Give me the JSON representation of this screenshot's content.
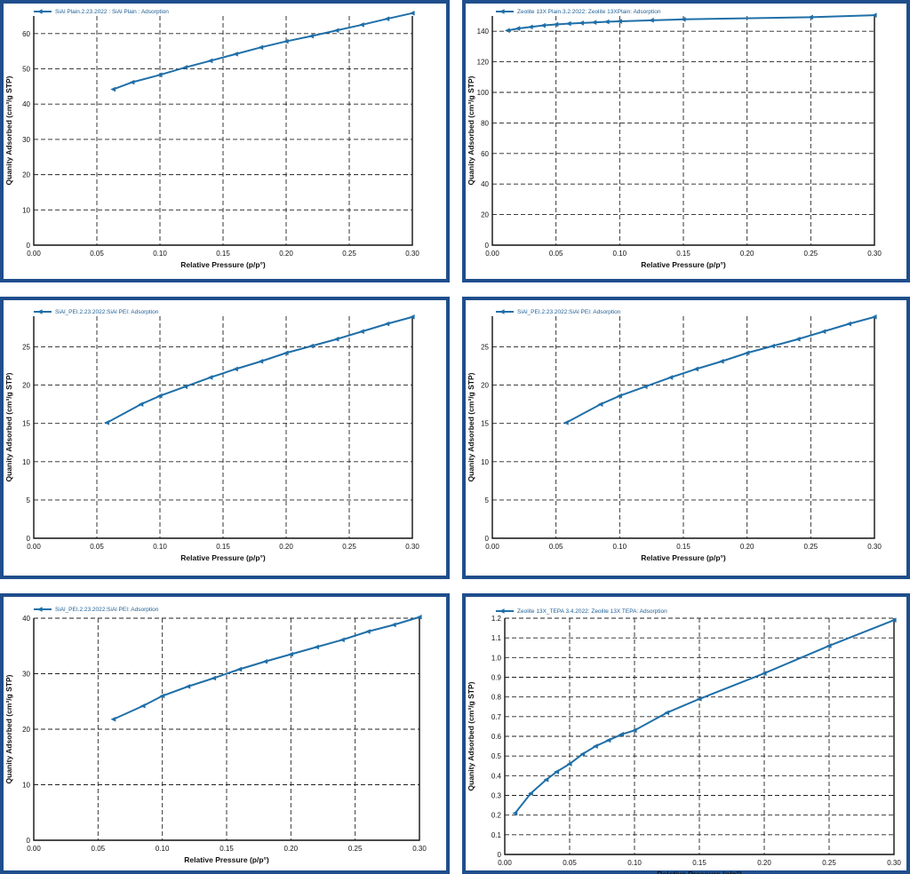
{
  "chart_data": [
    {
      "type": "line",
      "legend": "SiAl Plain.2.23.2022 : SiAl Plain : Adsorption",
      "xlabel": "Relative Pressure (p/p°)",
      "ylabel": "Quanity Adsorbed (cm³/g STP)",
      "xlim": [
        0,
        0.3
      ],
      "ylim": [
        0,
        65
      ],
      "xticks": [
        "0.00",
        "0.05",
        "0.10",
        "0.15",
        "0.20",
        "0.25",
        "0.30"
      ],
      "yticks": [
        "0",
        "10",
        "20",
        "30",
        "40",
        "50",
        "60"
      ],
      "series": [
        {
          "color": "#1f6fa8",
          "x": [
            0.063,
            0.078,
            0.1,
            0.12,
            0.14,
            0.16,
            0.18,
            0.2,
            0.22,
            0.24,
            0.26,
            0.28,
            0.3
          ],
          "y": [
            44.2,
            46.2,
            48.3,
            50.4,
            52.3,
            54.2,
            56.1,
            57.8,
            59.3,
            60.9,
            62.5,
            64.2,
            65.8
          ]
        }
      ]
    },
    {
      "type": "line",
      "legend": "Zeolite 13X Plain.3.2.2022: Zeolite 13XPlain: Adsorption",
      "xlabel": "Relative Pressure (p/p°)",
      "ylabel": "Quanity Adsorbed (cm³/g STP)",
      "xlim": [
        0,
        0.3
      ],
      "ylim": [
        0,
        150
      ],
      "xticks": [
        "0.00",
        "0.05",
        "0.10",
        "0.15",
        "0.20",
        "0.25",
        "0.30"
      ],
      "yticks": [
        "0",
        "20",
        "40",
        "60",
        "80",
        "100",
        "120",
        "140"
      ],
      "series": [
        {
          "color": "#1f6fa8",
          "x": [
            0.012,
            0.02,
            0.03,
            0.04,
            0.05,
            0.06,
            0.07,
            0.08,
            0.09,
            0.1,
            0.125,
            0.15,
            0.25,
            0.3
          ],
          "y": [
            140.5,
            141.8,
            142.8,
            143.8,
            144.5,
            145.0,
            145.4,
            145.8,
            146.2,
            146.5,
            147.2,
            147.8,
            149.2,
            150.5
          ]
        }
      ]
    },
    {
      "type": "line",
      "legend": "SiAl_PEI.2.23.2022:SiAl PEI: Adsorption",
      "xlabel": "Relative Pressure (p/p°)",
      "ylabel": "Quanity Adsorbed (cm³/g STP)",
      "xlim": [
        0,
        0.3
      ],
      "ylim": [
        0,
        29
      ],
      "xticks": [
        "0.00",
        "0.05",
        "0.10",
        "0.15",
        "0.20",
        "0.25",
        "0.30"
      ],
      "yticks": [
        "0",
        "5",
        "10",
        "15",
        "20",
        "25"
      ],
      "series": [
        {
          "color": "#1f6fa8",
          "x": [
            0.058,
            0.085,
            0.1,
            0.12,
            0.14,
            0.16,
            0.18,
            0.2,
            0.22,
            0.24,
            0.26,
            0.28,
            0.3
          ],
          "y": [
            15.1,
            17.5,
            18.6,
            19.8,
            21.0,
            22.1,
            23.1,
            24.2,
            25.1,
            26.0,
            27.0,
            28.0,
            28.9
          ]
        }
      ]
    },
    {
      "type": "line",
      "legend": "SiAl_PEI.2.23.2022:SiAl PEI: Adsorption",
      "xlabel": "Relative Pressure (p/p°)",
      "ylabel": "Quanity Adsorbed (cm³/g STP)",
      "xlim": [
        0,
        0.3
      ],
      "ylim": [
        0,
        29
      ],
      "xticks": [
        "0.00",
        "0.05",
        "0.10",
        "0.15",
        "0.20",
        "0.25",
        "0.30"
      ],
      "yticks": [
        "0",
        "5",
        "10",
        "15",
        "20",
        "25"
      ],
      "series": [
        {
          "color": "#1f6fa8",
          "x": [
            0.058,
            0.085,
            0.1,
            0.12,
            0.14,
            0.16,
            0.18,
            0.2,
            0.22,
            0.24,
            0.26,
            0.28,
            0.3
          ],
          "y": [
            15.1,
            17.5,
            18.6,
            19.8,
            21.0,
            22.1,
            23.1,
            24.2,
            25.1,
            26.0,
            27.0,
            28.0,
            28.9
          ]
        }
      ]
    },
    {
      "type": "line",
      "legend": "SiAl_PEI.2.23.2022:SiAl PEI: Adsorption",
      "xlabel": "Relative Pressure (p/p°)",
      "ylabel": "Quanity Adsorbed (cm³/g STP)",
      "xlim": [
        0,
        0.3
      ],
      "ylim": [
        0,
        40
      ],
      "xticks": [
        "0.00",
        "0.05",
        "0.10",
        "0.15",
        "0.20",
        "0.25",
        "0.30"
      ],
      "yticks": [
        "0",
        "10",
        "20",
        "30",
        "40"
      ],
      "series": [
        {
          "color": "#1f6fa8",
          "x": [
            0.062,
            0.085,
            0.1,
            0.12,
            0.14,
            0.16,
            0.18,
            0.2,
            0.22,
            0.24,
            0.26,
            0.28,
            0.3
          ],
          "y": [
            21.8,
            24.2,
            26.0,
            27.7,
            29.2,
            30.8,
            32.2,
            33.5,
            34.8,
            36.1,
            37.6,
            38.8,
            40.2
          ]
        }
      ]
    },
    {
      "type": "line",
      "legend": "Zeolite 13X_TEPA 3.4.2022: Zeolite 13X TEPA: Adsorption",
      "xlabel": "Relative Pressure (p/p°)",
      "ylabel": "Quanity Adsorbed (cm³/g STP)",
      "xlim": [
        0,
        0.3
      ],
      "ylim": [
        0,
        1.2
      ],
      "xticks": [
        "0.00",
        "0.05",
        "0.10",
        "0.15",
        "0.20",
        "0.25",
        "0.30"
      ],
      "yticks": [
        "0",
        "0.1",
        "0.2",
        "0.3",
        "0.4",
        "0.5",
        "0.6",
        "0.7",
        "0.8",
        "0.9",
        "1.0",
        "1.1",
        "1.2"
      ],
      "series": [
        {
          "color": "#1f6fa8",
          "x": [
            0.008,
            0.02,
            0.032,
            0.04,
            0.05,
            0.06,
            0.07,
            0.08,
            0.09,
            0.1,
            0.125,
            0.15,
            0.2,
            0.25,
            0.3
          ],
          "y": [
            0.21,
            0.31,
            0.38,
            0.42,
            0.46,
            0.51,
            0.55,
            0.58,
            0.61,
            0.63,
            0.72,
            0.79,
            0.92,
            1.06,
            1.19
          ]
        }
      ]
    }
  ]
}
